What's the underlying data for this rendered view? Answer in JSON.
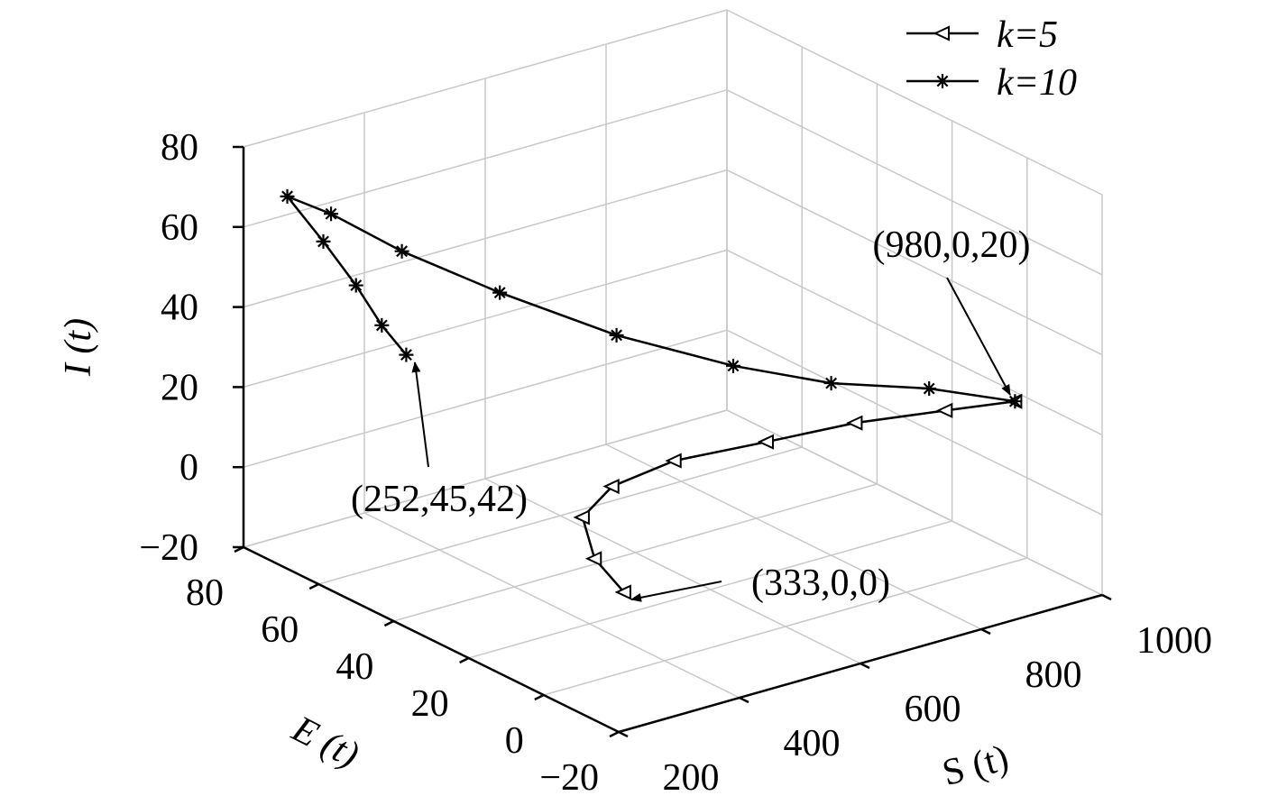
{
  "chart_data": {
    "type": "line3d",
    "xlabel": "S (t)",
    "ylabel": "E (t)",
    "zlabel": "I (t)",
    "xlim": [
      200,
      1000
    ],
    "ylim": [
      -20,
      80
    ],
    "zlim": [
      -20,
      80
    ],
    "xticks": [
      200,
      400,
      600,
      800,
      1000
    ],
    "yticks": [
      {
        "value": -20,
        "label": "−20"
      },
      0,
      20,
      40,
      60,
      80
    ],
    "zticks": [
      {
        "value": -20,
        "label": "−20"
      },
      0,
      20,
      40,
      60,
      80
    ],
    "grid": true,
    "legend": "upper right",
    "series": [
      {
        "name": "k=5",
        "marker": "triangle-left",
        "color": "#000000",
        "x": [
          980,
          896,
          809,
          718,
          615,
          512,
          432,
          365,
          333
        ],
        "y": [
          0,
          5,
          15,
          24,
          32,
          32,
          27,
          13,
          0
        ],
        "z": [
          20,
          19,
          15,
          10,
          6,
          4,
          2,
          1,
          0
        ]
      },
      {
        "name": "k=10",
        "marker": "asterisk",
        "color": "#000000",
        "x": [
          980,
          900,
          800,
          700,
          600,
          500,
          400,
          320,
          260,
          270,
          262,
          255,
          252
        ],
        "y": [
          0,
          10,
          20,
          30,
          45,
          60,
          70,
          76,
          78,
          70,
          60,
          52,
          45
        ],
        "z": [
          20,
          22,
          23,
          27,
          32,
          40,
          50,
          60,
          66,
          58,
          52,
          46,
          42
        ]
      }
    ],
    "annotations": [
      {
        "text": "(980,0,20)"
      },
      {
        "text": "(252,45,42)"
      },
      {
        "text": "(333,0,0)"
      }
    ]
  }
}
